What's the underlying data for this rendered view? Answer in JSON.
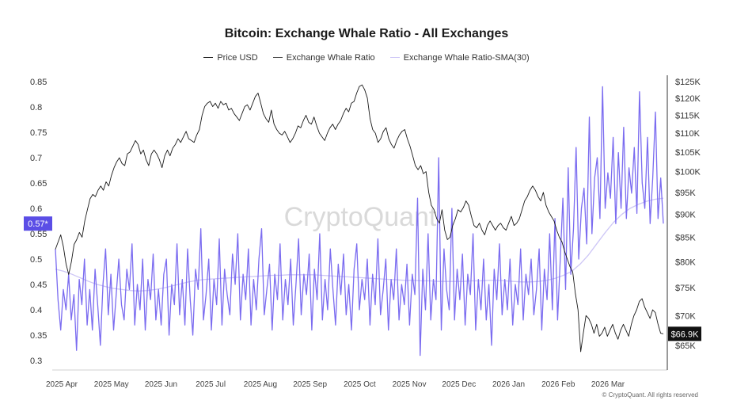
{
  "header": {
    "title": "Bitcoin: Exchange Whale Ratio - All Exchanges"
  },
  "legend": {
    "items": [
      "Price USD",
      "Exchange Whale Ratio",
      "Exchange Whale Ratio-SMA(30)"
    ]
  },
  "watermark": "CryptoQuant",
  "footer": {
    "copyright": "© CryptoQuant. All rights reserved"
  },
  "colors": {
    "price": "#1a1a1a",
    "ratio": "#7b6cf0",
    "sma": "#cdc6f6",
    "badge_ratio": "#5b4ee6",
    "badge_price": "#111111"
  },
  "chart_data": {
    "type": "line",
    "title": "Bitcoin: Exchange Whale Ratio - All Exchanges",
    "x_labels": [
      "2025 Apr",
      "2025 May",
      "2025 Jun",
      "2025 Jul",
      "2025 Aug",
      "2025 Sep",
      "2025 Oct",
      "2025 Nov",
      "2025 Dec",
      "2026 Jan",
      "2026 Feb",
      "2026 Mar"
    ],
    "left_axis": {
      "ticks": [
        "0.85",
        "0.8",
        "0.75",
        "0.7",
        "0.65",
        "0.6",
        "0.55",
        "0.5",
        "0.45",
        "0.4",
        "0.35",
        "0.3"
      ],
      "range": [
        0.3,
        0.85
      ]
    },
    "right_axis": {
      "ticks": [
        "$125K",
        "$120K",
        "$115K",
        "$110K",
        "$105K",
        "$100K",
        "$95K",
        "$90K",
        "$85K",
        "$80K",
        "$75K",
        "$70K",
        "$65K"
      ],
      "scale": "log",
      "range": [
        62000,
        127000
      ]
    },
    "current_values": {
      "ratio_label": "0.57*",
      "ratio": 0.57,
      "price_label": "$66.9K",
      "price": 66900
    },
    "grid": false,
    "legend_position": "top-center",
    "series": [
      {
        "name": "Price USD",
        "axis": "right",
        "values": [
          82500,
          84000,
          85500,
          83000,
          79500,
          77500,
          80000,
          83500,
          84500,
          86000,
          85000,
          88500,
          91000,
          93500,
          94500,
          94000,
          95500,
          96500,
          95500,
          97500,
          96500,
          99000,
          101000,
          102500,
          103500,
          102000,
          101500,
          104500,
          105000,
          106500,
          108000,
          107000,
          104500,
          105500,
          103000,
          101500,
          104500,
          105500,
          104500,
          103000,
          101000,
          104000,
          105500,
          104000,
          106000,
          107000,
          108500,
          107500,
          109000,
          110500,
          108500,
          108000,
          107500,
          109500,
          111000,
          115000,
          117500,
          118500,
          119000,
          117500,
          118500,
          117000,
          119000,
          118000,
          118500,
          116500,
          117000,
          115500,
          114500,
          113500,
          115500,
          117500,
          118000,
          116500,
          118500,
          120500,
          121500,
          118500,
          115500,
          114000,
          113000,
          116500,
          112500,
          111000,
          110000,
          109500,
          110500,
          109000,
          107500,
          108500,
          110000,
          112000,
          111500,
          113500,
          115000,
          113000,
          112500,
          114500,
          112000,
          110000,
          109000,
          108000,
          110000,
          111500,
          112500,
          111000,
          112500,
          113500,
          115500,
          117000,
          116000,
          118500,
          119000,
          121500,
          123500,
          124000,
          122500,
          120000,
          114000,
          111000,
          110000,
          107500,
          108500,
          110500,
          111500,
          108500,
          107000,
          106000,
          108000,
          109500,
          110500,
          111000,
          108500,
          106500,
          104000,
          101500,
          100500,
          101500,
          99500,
          100000,
          95000,
          92000,
          91000,
          89000,
          88000,
          91000,
          86500,
          84500,
          85000,
          87500,
          89000,
          91000,
          90500,
          91500,
          93000,
          92000,
          89500,
          87500,
          87000,
          88000,
          86500,
          85500,
          87500,
          88500,
          87500,
          86500,
          87500,
          88000,
          87000,
          86500,
          88000,
          89500,
          87500,
          88000,
          89000,
          91000,
          93000,
          94000,
          95500,
          96500,
          95500,
          94000,
          93000,
          95000,
          92000,
          90500,
          89500,
          88500,
          86500,
          85000,
          84000,
          82000,
          80500,
          79000,
          78000,
          74000,
          71000,
          64000,
          67000,
          70000,
          69500,
          68500,
          67000,
          68500,
          66500,
          67000,
          68000,
          66500,
          67500,
          68500,
          67000,
          66000,
          67500,
          68500,
          67500,
          66500,
          68500,
          70000,
          71000,
          72500,
          73000,
          71500,
          70500,
          69500,
          71000,
          70500,
          68500,
          67000,
          66900
        ]
      },
      {
        "name": "Exchange Whale Ratio",
        "axis": "left",
        "values": [
          0.52,
          0.42,
          0.36,
          0.44,
          0.4,
          0.47,
          0.38,
          0.43,
          0.32,
          0.46,
          0.41,
          0.5,
          0.37,
          0.44,
          0.36,
          0.48,
          0.41,
          0.33,
          0.45,
          0.52,
          0.39,
          0.47,
          0.36,
          0.43,
          0.5,
          0.41,
          0.38,
          0.48,
          0.44,
          0.53,
          0.37,
          0.45,
          0.4,
          0.5,
          0.36,
          0.46,
          0.42,
          0.51,
          0.38,
          0.44,
          0.37,
          0.47,
          0.5,
          0.35,
          0.45,
          0.41,
          0.53,
          0.39,
          0.46,
          0.37,
          0.52,
          0.42,
          0.35,
          0.48,
          0.44,
          0.56,
          0.38,
          0.43,
          0.5,
          0.36,
          0.46,
          0.41,
          0.54,
          0.37,
          0.48,
          0.43,
          0.39,
          0.51,
          0.45,
          0.55,
          0.38,
          0.47,
          0.42,
          0.52,
          0.37,
          0.46,
          0.4,
          0.5,
          0.56,
          0.39,
          0.44,
          0.49,
          0.36,
          0.47,
          0.42,
          0.53,
          0.38,
          0.46,
          0.41,
          0.5,
          0.37,
          0.45,
          0.54,
          0.39,
          0.47,
          0.43,
          0.51,
          0.36,
          0.48,
          0.42,
          0.55,
          0.38,
          0.46,
          0.4,
          0.52,
          0.44,
          0.37,
          0.49,
          0.43,
          0.51,
          0.39,
          0.45,
          0.36,
          0.48,
          0.53,
          0.4,
          0.46,
          0.42,
          0.5,
          0.37,
          0.47,
          0.41,
          0.54,
          0.39,
          0.44,
          0.5,
          0.36,
          0.46,
          0.42,
          0.52,
          0.38,
          0.45,
          0.41,
          0.49,
          0.37,
          0.47,
          0.43,
          0.62,
          0.31,
          0.48,
          0.4,
          0.55,
          0.38,
          0.46,
          0.42,
          0.7,
          0.36,
          0.52,
          0.44,
          0.4,
          0.6,
          0.38,
          0.48,
          0.42,
          0.51,
          0.37,
          0.47,
          0.43,
          0.55,
          0.36,
          0.46,
          0.4,
          0.5,
          0.38,
          0.45,
          0.33,
          0.48,
          0.42,
          0.53,
          0.39,
          0.46,
          0.4,
          0.5,
          0.37,
          0.45,
          0.41,
          0.52,
          0.38,
          0.47,
          0.43,
          0.5,
          0.39,
          0.44,
          0.52,
          0.36,
          0.48,
          0.42,
          0.55,
          0.4,
          0.58,
          0.38,
          0.5,
          0.62,
          0.44,
          0.68,
          0.47,
          0.56,
          0.72,
          0.5,
          0.6,
          0.64,
          0.53,
          0.78,
          0.55,
          0.66,
          0.7,
          0.58,
          0.84,
          0.6,
          0.67,
          0.62,
          0.74,
          0.57,
          0.71,
          0.6,
          0.76,
          0.58,
          0.68,
          0.63,
          0.72,
          0.59,
          0.83,
          0.65,
          0.6,
          0.74,
          0.57,
          0.66,
          0.79,
          0.58,
          0.66,
          0.57
        ]
      },
      {
        "name": "Exchange Whale Ratio-SMA(30)",
        "axis": "left",
        "values": [
          0.48,
          0.476,
          0.47,
          0.463,
          0.456,
          0.45,
          0.446,
          0.442,
          0.44,
          0.438,
          0.437,
          0.438,
          0.44,
          0.443,
          0.447,
          0.451,
          0.455,
          0.458,
          0.46,
          0.461,
          0.462,
          0.463,
          0.464,
          0.465,
          0.466,
          0.467,
          0.468,
          0.468,
          0.469,
          0.469,
          0.469,
          0.469,
          0.468,
          0.467,
          0.466,
          0.465,
          0.464,
          0.463,
          0.462,
          0.461,
          0.46,
          0.459,
          0.458,
          0.458,
          0.457,
          0.457,
          0.456,
          0.456,
          0.456,
          0.456,
          0.457,
          0.457,
          0.458,
          0.458,
          0.457,
          0.456,
          0.455,
          0.455,
          0.456,
          0.458,
          0.462,
          0.468,
          0.476,
          0.49,
          0.508,
          0.53,
          0.552,
          0.572,
          0.588,
          0.6,
          0.608,
          0.614,
          0.618,
          0.62
        ]
      }
    ]
  }
}
